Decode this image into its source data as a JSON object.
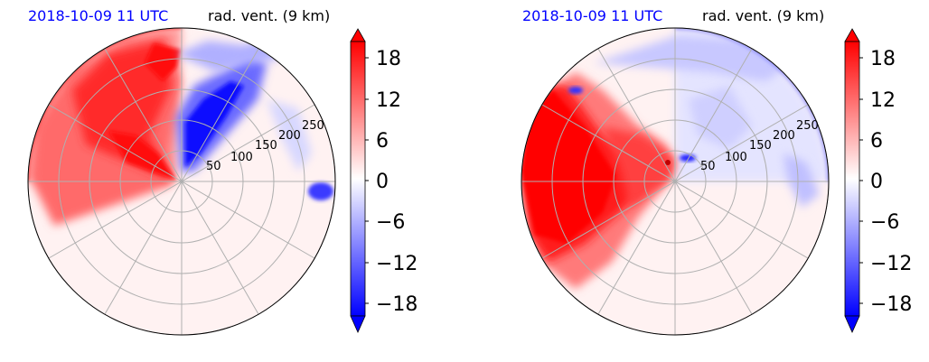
{
  "panels": [
    {
      "time_label": "2018-10-09 11 UTC",
      "field_label": "rad. vent. (9 km)",
      "range_rings_km": [
        50,
        100,
        150,
        200,
        250
      ],
      "range_ring_labels": [
        "50",
        "100",
        "150",
        "200",
        "250"
      ]
    },
    {
      "time_label": "2018-10-09 11 UTC",
      "field_label": "rad. vent. (9 km)",
      "range_rings_km": [
        50,
        100,
        150,
        200,
        250
      ],
      "range_ring_labels": [
        "50",
        "100",
        "150",
        "200",
        "250"
      ]
    }
  ],
  "colorbar": {
    "ticks": [
      18,
      12,
      6,
      0,
      -6,
      -12,
      -18
    ],
    "tick_labels": [
      "18",
      "12",
      "6",
      "0",
      "−6",
      "−12",
      "−18"
    ],
    "vmin": -20,
    "vmax": 20,
    "extend": "both",
    "colormap": "bwr",
    "color_low": "#0000ff",
    "color_mid": "#ffffff",
    "color_high": "#ff0000"
  },
  "chart_data": [
    {
      "type": "heatmap",
      "projection": "polar (radar PPI)",
      "title_left": "2018-10-09 11 UTC",
      "title_right": "rad. vent. (9 km)",
      "radial_axis_ticks": [
        50,
        100,
        150,
        200,
        250
      ],
      "angular_grid_deg": [
        0,
        30,
        60,
        90,
        120,
        150,
        180,
        210,
        240,
        270,
        300,
        330
      ],
      "value_range": [
        -20,
        20
      ],
      "regions": [
        {
          "sector": "west-northwest",
          "sign": "positive",
          "peak": 20
        },
        {
          "sector": "north-northeast",
          "sign": "negative",
          "peak": -20
        },
        {
          "sector": "east (far range)",
          "sign": "negative",
          "peak": -16
        },
        {
          "sector": "south",
          "sign": "near zero",
          "peak": 2
        }
      ]
    },
    {
      "type": "heatmap",
      "projection": "polar (radar PPI)",
      "title_left": "2018-10-09 11 UTC",
      "title_right": "rad. vent. (9 km)",
      "radial_axis_ticks": [
        50,
        100,
        150,
        200,
        250
      ],
      "angular_grid_deg": [
        0,
        30,
        60,
        90,
        120,
        150,
        180,
        210,
        240,
        270,
        300,
        330
      ],
      "value_range": [
        -20,
        20
      ],
      "regions": [
        {
          "sector": "west",
          "sign": "positive",
          "peak": 20
        },
        {
          "sector": "north-northeast",
          "sign": "negative",
          "peak": -8
        },
        {
          "sector": "east",
          "sign": "negative",
          "peak": -8
        },
        {
          "sector": "south",
          "sign": "near zero",
          "peak": 2
        }
      ]
    }
  ]
}
